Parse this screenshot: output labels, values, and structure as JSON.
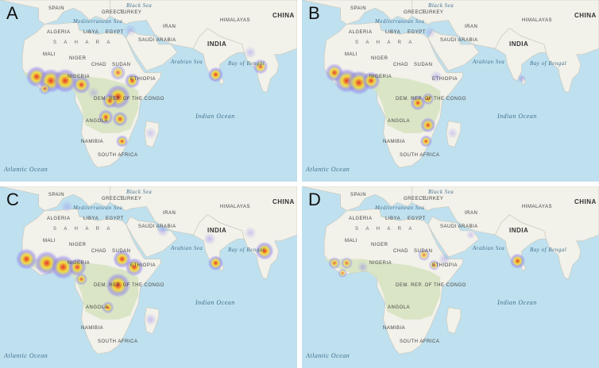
{
  "colors": {
    "ocean": "#bfe0ee",
    "land": "#f2f1ea",
    "vegetation": "#d6e3c0",
    "heat_low": "#8a7cf0",
    "heat_mid": "#f2e23a",
    "heat_high": "#e8322a"
  },
  "labels": {
    "spain": "SPAIN",
    "turkey": "TURKEY",
    "greece": "GREECE",
    "mediterranean": "Mediterranean Sea",
    "black_sea": "Black Sea",
    "algeria": "ALGERIA",
    "libya": "LIBYA",
    "egypt": "EGYPT",
    "saudi": "SAUDI ARABIA",
    "iran": "IRAN",
    "himalayas": "HIMALAYAS",
    "china": "CHINA",
    "india": "INDIA",
    "sahara": "S A H A R A",
    "mali": "MALI",
    "niger": "NIGER",
    "chad": "CHAD",
    "sudan": "SUDAN",
    "ethiopia": "ETHIOPIA",
    "nigeria": "NIGERIA",
    "drc": "DEM. REP. OF THE CONGO",
    "angola": "ANGOLA",
    "namibia": "NAMIBIA",
    "south_africa": "SOUTH AFRICA",
    "arabian_sea": "Arabian Sea",
    "bay_of_bengal": "Bay of Bengal",
    "indian_ocean": "Indian Ocean",
    "atlantic_ocean": "Atlantic Ocean"
  },
  "panels": [
    {
      "letter": "A",
      "hotspots": [
        {
          "lon": -10,
          "lat": 10,
          "r": 3.5,
          "level": 0.95
        },
        {
          "lon": -3,
          "lat": 8,
          "r": 4,
          "level": 1
        },
        {
          "lon": 4,
          "lat": 8,
          "r": 4,
          "level": 1
        },
        {
          "lon": 12,
          "lat": 6,
          "r": 3,
          "level": 0.85
        },
        {
          "lon": -6,
          "lat": 4,
          "r": 2,
          "level": 0.5
        },
        {
          "lon": 30,
          "lat": 12,
          "r": 2.5,
          "level": 0.6
        },
        {
          "lon": 37,
          "lat": 8,
          "r": 2.5,
          "level": 0.85
        },
        {
          "lon": 30,
          "lat": 0,
          "r": 4,
          "level": 1
        },
        {
          "lon": 26,
          "lat": -2,
          "r": 2.5,
          "level": 0.8
        },
        {
          "lon": 24,
          "lat": -10,
          "r": 2.5,
          "level": 0.85
        },
        {
          "lon": 31,
          "lat": -11,
          "r": 2.5,
          "level": 0.8
        },
        {
          "lon": 32,
          "lat": -22,
          "r": 2,
          "level": 0.85
        },
        {
          "lon": 46,
          "lat": -18,
          "r": 2,
          "level": 0.2
        },
        {
          "lon": 18,
          "lat": 2,
          "r": 2,
          "level": 0.25
        },
        {
          "lon": 78,
          "lat": 11,
          "r": 2.5,
          "level": 1
        },
        {
          "lon": 95,
          "lat": 22,
          "r": 2,
          "level": 0.3
        },
        {
          "lon": 100,
          "lat": 15,
          "r": 2.5,
          "level": 0.7
        },
        {
          "lon": 36,
          "lat": 33,
          "r": 2,
          "level": 0.2
        }
      ]
    },
    {
      "letter": "B",
      "hotspots": [
        {
          "lon": -12,
          "lat": 12,
          "r": 3,
          "level": 0.85
        },
        {
          "lon": -6,
          "lat": 8,
          "r": 4,
          "level": 1
        },
        {
          "lon": 0,
          "lat": 7,
          "r": 4,
          "level": 1
        },
        {
          "lon": 6,
          "lat": 8,
          "r": 3,
          "level": 0.9
        },
        {
          "lon": 38,
          "lat": 10,
          "r": 2,
          "level": 0.4
        },
        {
          "lon": 29,
          "lat": -3,
          "r": 2.5,
          "level": 0.85
        },
        {
          "lon": 34,
          "lat": -1,
          "r": 2,
          "level": 0.7
        },
        {
          "lon": 34,
          "lat": -14,
          "r": 2.5,
          "level": 0.85
        },
        {
          "lon": 33,
          "lat": -22,
          "r": 2,
          "level": 0.85
        },
        {
          "lon": 46,
          "lat": -18,
          "r": 1.8,
          "level": 0.2
        },
        {
          "lon": 80,
          "lat": 9,
          "r": 1.5,
          "level": 0.45
        },
        {
          "lon": 35,
          "lat": 32,
          "r": 2,
          "level": 0.15
        }
      ]
    },
    {
      "letter": "C",
      "hotspots": [
        {
          "lon": -15,
          "lat": 12,
          "r": 3.5,
          "level": 0.95
        },
        {
          "lon": -5,
          "lat": 10,
          "r": 4,
          "level": 1
        },
        {
          "lon": 3,
          "lat": 8,
          "r": 4,
          "level": 1
        },
        {
          "lon": 10,
          "lat": 8,
          "r": 3,
          "level": 0.85
        },
        {
          "lon": 12,
          "lat": 2,
          "r": 2,
          "level": 0.7
        },
        {
          "lon": 32,
          "lat": 12,
          "r": 3,
          "level": 0.95
        },
        {
          "lon": 38,
          "lat": 8,
          "r": 3,
          "level": 0.9
        },
        {
          "lon": 30,
          "lat": -1,
          "r": 4,
          "level": 1
        },
        {
          "lon": 25,
          "lat": -12,
          "r": 2,
          "level": 0.7
        },
        {
          "lon": 46,
          "lat": -18,
          "r": 2,
          "level": 0.35
        },
        {
          "lon": 5,
          "lat": 38,
          "r": 2,
          "level": 0.2
        },
        {
          "lon": 52,
          "lat": 26,
          "r": 2,
          "level": 0.4
        },
        {
          "lon": 78,
          "lat": 10,
          "r": 2.5,
          "level": 1
        },
        {
          "lon": 75,
          "lat": 22,
          "r": 2,
          "level": 0.4
        },
        {
          "lon": 102,
          "lat": 16,
          "r": 3,
          "level": 0.95
        },
        {
          "lon": 95,
          "lat": 25,
          "r": 2,
          "level": 0.25
        }
      ]
    },
    {
      "letter": "D",
      "hotspots": [
        {
          "lon": -12,
          "lat": 10,
          "r": 2,
          "level": 0.6
        },
        {
          "lon": -6,
          "lat": 10,
          "r": 2,
          "level": 0.55
        },
        {
          "lon": 2,
          "lat": 8,
          "r": 1.8,
          "level": 0.45
        },
        {
          "lon": -8,
          "lat": 5,
          "r": 1.5,
          "level": 0.55
        },
        {
          "lon": 32,
          "lat": 14,
          "r": 2,
          "level": 0.55
        },
        {
          "lon": 37,
          "lat": 9,
          "r": 1.8,
          "level": 0.5
        },
        {
          "lon": 42,
          "lat": 12,
          "r": 2,
          "level": 0.25
        },
        {
          "lon": 78,
          "lat": 11,
          "r": 2.5,
          "level": 1
        },
        {
          "lon": 55,
          "lat": 24,
          "r": 1.5,
          "level": 0.2
        }
      ]
    }
  ]
}
